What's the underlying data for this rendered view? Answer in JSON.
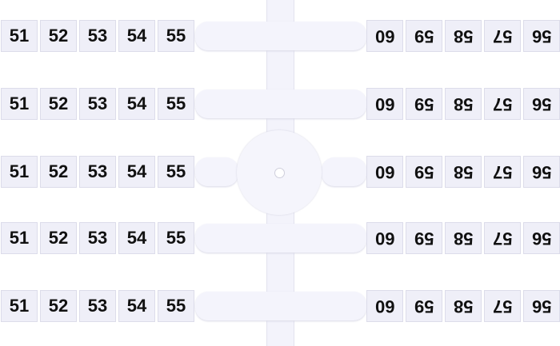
{
  "left_labels": [
    "51",
    "52",
    "53",
    "54",
    "55"
  ],
  "right_labels": [
    "60",
    "59",
    "58",
    "57",
    "56"
  ],
  "right_labels_orientation": "rotated-180",
  "row_count": 5,
  "colors": {
    "tile": "#efeff8",
    "text": "#111111",
    "background": "#ffffff"
  }
}
